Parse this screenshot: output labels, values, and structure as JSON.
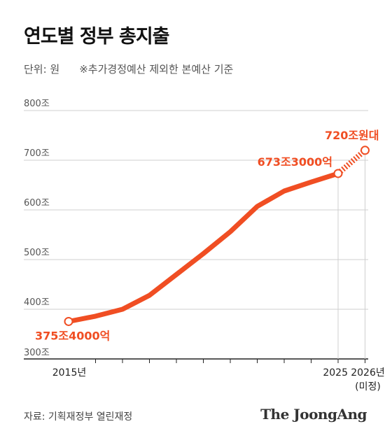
{
  "title": "연도별 정부 총지출",
  "unit_label": "단위: 원",
  "note": "※추가경정예산 제외한 본예산 기준",
  "source": "자료: 기획재정부 열린재정",
  "logo": "The JoongAng",
  "colors": {
    "line": "#f04e23",
    "grid": "#cfcfcf",
    "axis": "#222222"
  },
  "chart_data": {
    "type": "line",
    "ylim": [
      300,
      800
    ],
    "y_ticks": [
      {
        "value": 800,
        "label": "800조"
      },
      {
        "value": 700,
        "label": "700조"
      },
      {
        "value": 600,
        "label": "600조"
      },
      {
        "value": 500,
        "label": "500조"
      },
      {
        "value": 400,
        "label": "400조"
      },
      {
        "value": 300,
        "label": "300조"
      }
    ],
    "x": [
      2015,
      2016,
      2017,
      2018,
      2019,
      2020,
      2021,
      2022,
      2023,
      2024,
      2025,
      2026
    ],
    "x_tick_labels": [
      {
        "x": 2015,
        "label": "2015년"
      },
      {
        "x": 2025,
        "label": "2025"
      },
      {
        "x": 2026,
        "label": "2026년",
        "sub": "(미정)"
      }
    ],
    "series": [
      {
        "values": [
          375.4,
          386,
          400,
          428,
          470,
          512,
          556,
          607,
          638,
          656,
          673.3,
          null
        ],
        "style": "solid"
      },
      {
        "values": [
          null,
          null,
          null,
          null,
          null,
          null,
          null,
          null,
          null,
          null,
          673.3,
          720
        ],
        "style": "dotted"
      }
    ],
    "annotations": [
      {
        "x": 2015,
        "y": 375.4,
        "label": "375조4000억",
        "position": "below"
      },
      {
        "x": 2025,
        "y": 673.3,
        "label": "673조3000억",
        "position": "left"
      },
      {
        "x": 2026,
        "y": 720,
        "label": "720조원대",
        "position": "above"
      }
    ]
  }
}
